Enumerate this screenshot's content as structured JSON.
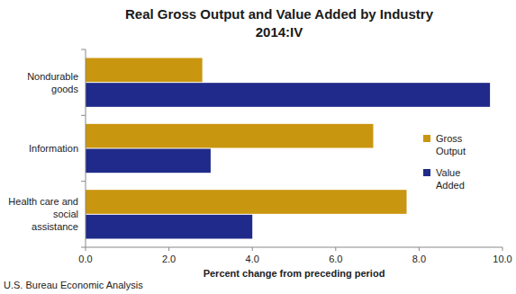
{
  "chart_data": {
    "type": "bar",
    "orientation": "horizontal",
    "title": "Real Gross Output and Value Added by Industry",
    "subtitle": "2014:IV",
    "x_label": "Percent change from preceding period",
    "source": "U.S. Bureau Economic Analysis",
    "categories": [
      "Nondurable goods",
      "Information",
      "Health care and social assistance"
    ],
    "series": [
      {
        "name": "Gross Output",
        "color": "#c9960f",
        "values": [
          2.8,
          6.9,
          7.7
        ]
      },
      {
        "name": "Value Added",
        "color": "#1f2a8a",
        "values": [
          9.7,
          3.0,
          4.0
        ]
      }
    ],
    "xlim": [
      0,
      10
    ],
    "xticks": [
      {
        "value": 0,
        "label": "0.0"
      },
      {
        "value": 2,
        "label": "2.0"
      },
      {
        "value": 4,
        "label": "4.0"
      },
      {
        "value": 6,
        "label": "6.0"
      },
      {
        "value": 8,
        "label": "8.0"
      },
      {
        "value": 10,
        "label": "10.0"
      }
    ],
    "grid": false,
    "legend": "right"
  }
}
